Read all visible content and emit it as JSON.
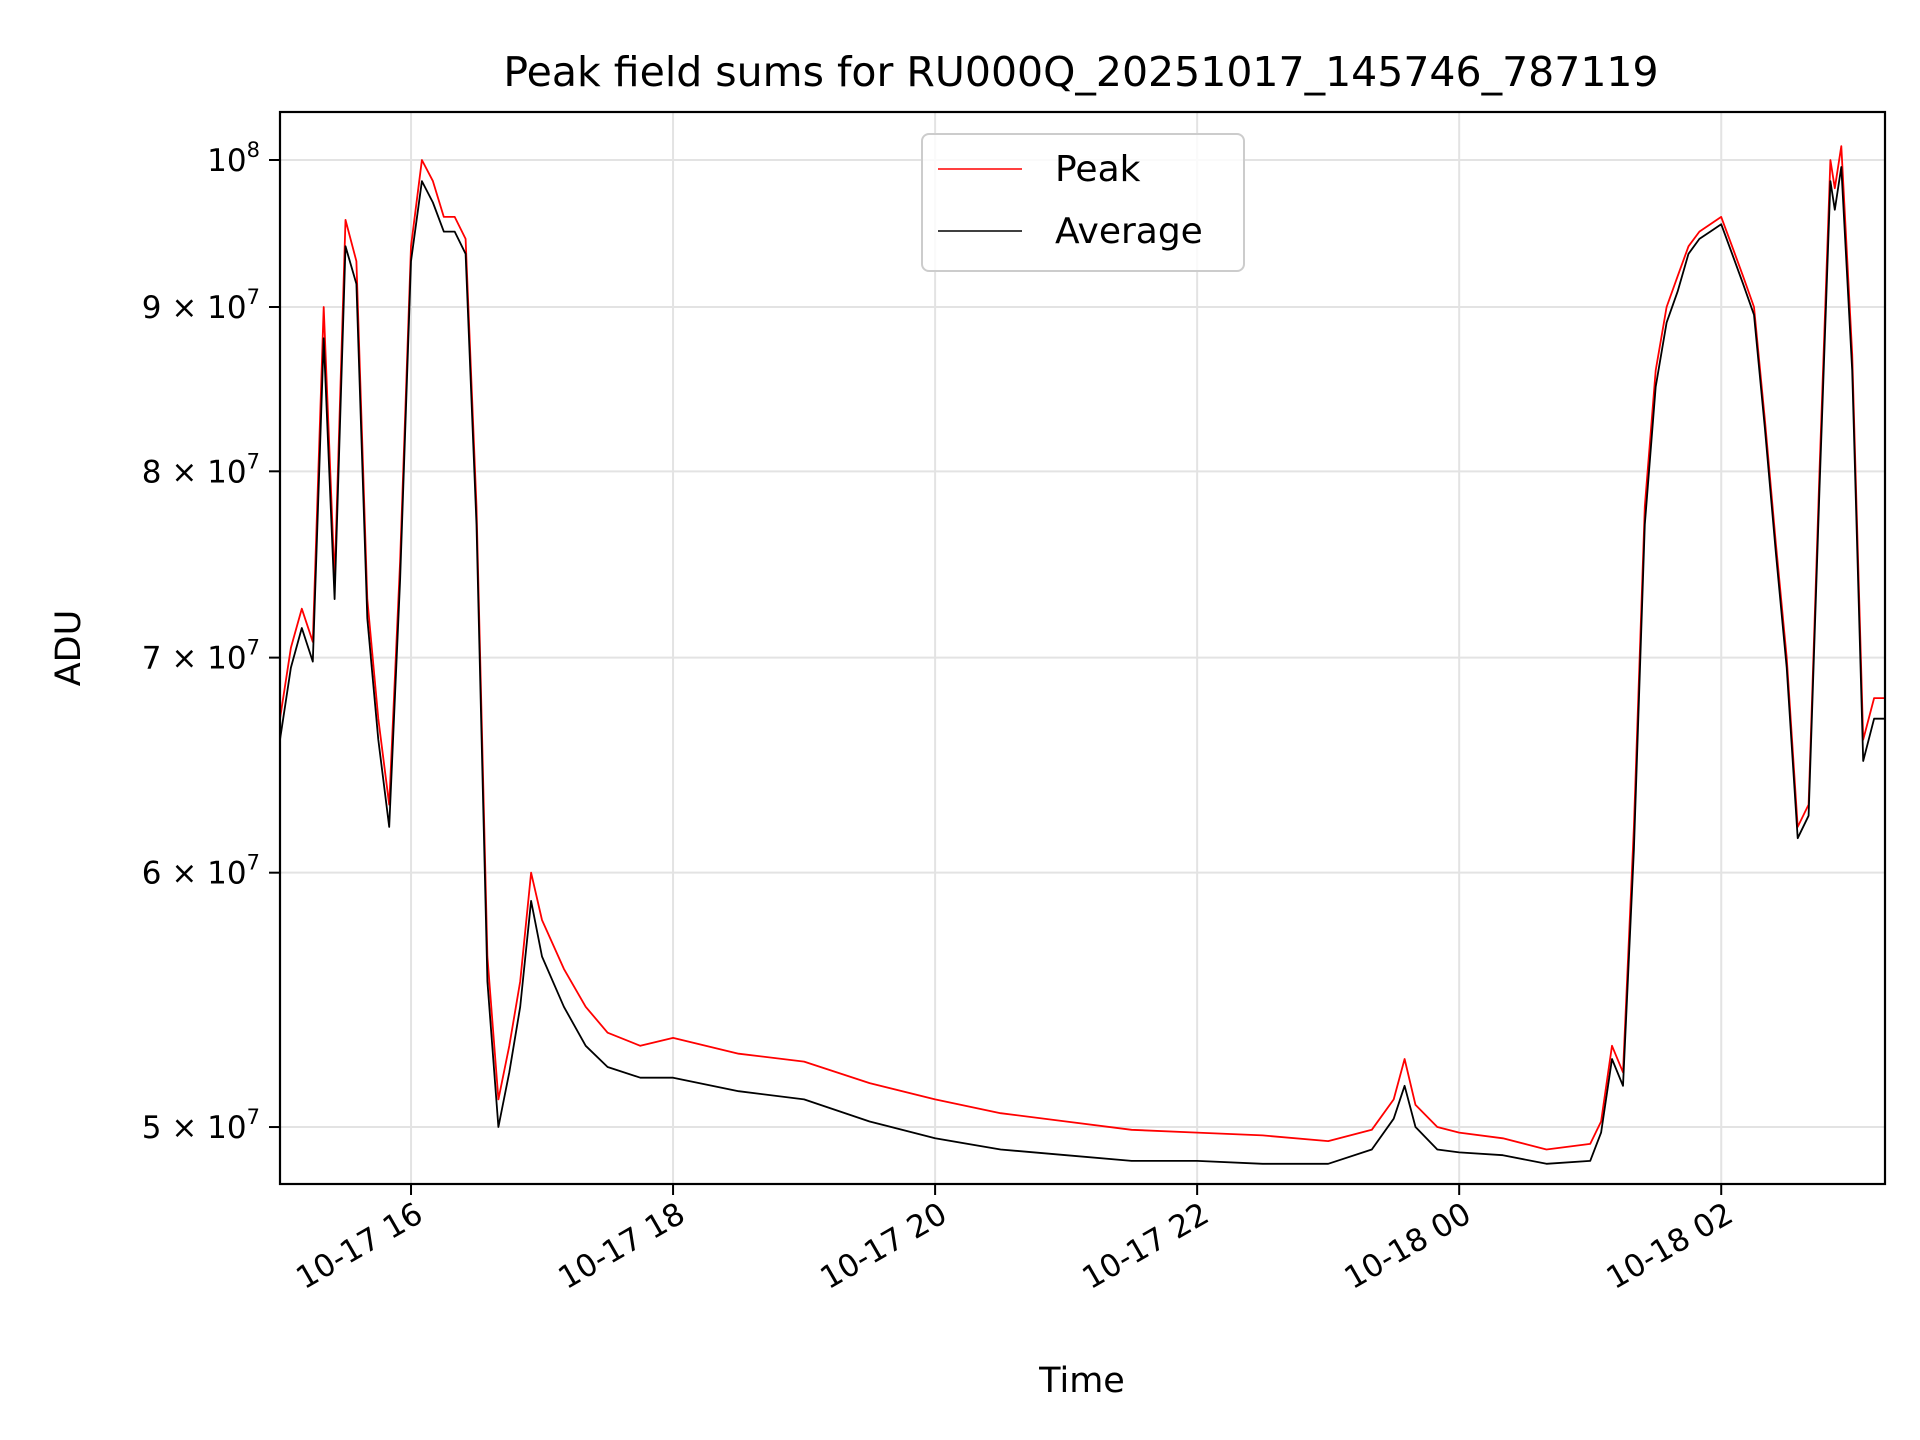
{
  "chart_data": {
    "type": "line",
    "title": "Peak field sums for RU000Q_20251017_145746_787119",
    "xlabel": "Time",
    "ylabel": "ADU",
    "yscale": "log",
    "grid": true,
    "legend_position": "top-center",
    "xlim": [
      "2025-10-17 15:00",
      "2025-10-18 03:15"
    ],
    "ylim": [
      48000000,
      103500000
    ],
    "x_ticks": [
      {
        "value": "2025-10-17 16:00",
        "label": "10-17 16"
      },
      {
        "value": "2025-10-17 18:00",
        "label": "10-17 18"
      },
      {
        "value": "2025-10-17 20:00",
        "label": "10-17 20"
      },
      {
        "value": "2025-10-17 22:00",
        "label": "10-17 22"
      },
      {
        "value": "2025-10-18 00:00",
        "label": "10-18 00"
      },
      {
        "value": "2025-10-18 02:00",
        "label": "10-18 02"
      }
    ],
    "y_ticks": [
      {
        "value": 50000000,
        "mantissa": "5 × 10",
        "exponent": "7"
      },
      {
        "value": 60000000,
        "mantissa": "6 × 10",
        "exponent": "7"
      },
      {
        "value": 70000000,
        "mantissa": "7 × 10",
        "exponent": "7"
      },
      {
        "value": 80000000,
        "mantissa": "8 × 10",
        "exponent": "7"
      },
      {
        "value": 90000000,
        "mantissa": "9 × 10",
        "exponent": "7"
      },
      {
        "value": 100000000,
        "mantissa": "10",
        "exponent": "8"
      }
    ],
    "x": [
      "2025-10-17 15:00",
      "2025-10-17 15:05",
      "2025-10-17 15:10",
      "2025-10-17 15:15",
      "2025-10-17 15:20",
      "2025-10-17 15:25",
      "2025-10-17 15:30",
      "2025-10-17 15:35",
      "2025-10-17 15:40",
      "2025-10-17 15:45",
      "2025-10-17 15:50",
      "2025-10-17 15:55",
      "2025-10-17 16:00",
      "2025-10-17 16:05",
      "2025-10-17 16:10",
      "2025-10-17 16:15",
      "2025-10-17 16:20",
      "2025-10-17 16:25",
      "2025-10-17 16:30",
      "2025-10-17 16:35",
      "2025-10-17 16:40",
      "2025-10-17 16:45",
      "2025-10-17 16:50",
      "2025-10-17 16:55",
      "2025-10-17 17:00",
      "2025-10-17 17:10",
      "2025-10-17 17:20",
      "2025-10-17 17:30",
      "2025-10-17 17:45",
      "2025-10-17 18:00",
      "2025-10-17 18:30",
      "2025-10-17 19:00",
      "2025-10-17 19:30",
      "2025-10-17 20:00",
      "2025-10-17 20:30",
      "2025-10-17 21:00",
      "2025-10-17 21:30",
      "2025-10-17 22:00",
      "2025-10-17 22:30",
      "2025-10-17 23:00",
      "2025-10-17 23:20",
      "2025-10-17 23:30",
      "2025-10-17 23:35",
      "2025-10-17 23:40",
      "2025-10-17 23:50",
      "2025-10-18 00:00",
      "2025-10-18 00:20",
      "2025-10-18 00:40",
      "2025-10-18 01:00",
      "2025-10-18 01:05",
      "2025-10-18 01:10",
      "2025-10-18 01:15",
      "2025-10-18 01:20",
      "2025-10-18 01:25",
      "2025-10-18 01:30",
      "2025-10-18 01:35",
      "2025-10-18 01:40",
      "2025-10-18 01:45",
      "2025-10-18 01:50",
      "2025-10-18 01:55",
      "2025-10-18 02:00",
      "2025-10-18 02:05",
      "2025-10-18 02:10",
      "2025-10-18 02:15",
      "2025-10-18 02:20",
      "2025-10-18 02:25",
      "2025-10-18 02:30",
      "2025-10-18 02:35",
      "2025-10-18 02:40",
      "2025-10-18 02:45",
      "2025-10-18 02:50",
      "2025-10-18 02:52",
      "2025-10-18 02:55",
      "2025-10-18 03:00",
      "2025-10-18 03:05",
      "2025-10-18 03:10",
      "2025-10-18 03:15"
    ],
    "series": [
      {
        "name": "Peak",
        "color": "#ff0000",
        "values": [
          67000000,
          70500000,
          72500000,
          70800000,
          90000000,
          74000000,
          95800000,
          93000000,
          73000000,
          67000000,
          63000000,
          75000000,
          94000000,
          100000000,
          98500000,
          96000000,
          96000000,
          94500000,
          78000000,
          56500000,
          51000000,
          53000000,
          55500000,
          60000000,
          58000000,
          56000000,
          54500000,
          53500000,
          53000000,
          53300000,
          52700000,
          52400000,
          51600000,
          51000000,
          50500000,
          50200000,
          49900000,
          49800000,
          49700000,
          49500000,
          49900000,
          51000000,
          52500000,
          50800000,
          50000000,
          49800000,
          49600000,
          49200000,
          49400000,
          50200000,
          53000000,
          52000000,
          62000000,
          78000000,
          86000000,
          90000000,
          92000000,
          94000000,
          95000000,
          95500000,
          96000000,
          94000000,
          92000000,
          90000000,
          83000000,
          76000000,
          70000000,
          62000000,
          63000000,
          80000000,
          100000000,
          98000000,
          101000000,
          87000000,
          66000000,
          68000000,
          68000000
        ]
      },
      {
        "name": "Average",
        "color": "#000000",
        "values": [
          66000000,
          69500000,
          71500000,
          69800000,
          88000000,
          73000000,
          94000000,
          91500000,
          72000000,
          66000000,
          62000000,
          74000000,
          93000000,
          98500000,
          97000000,
          95000000,
          95000000,
          93500000,
          77000000,
          55500000,
          50000000,
          52000000,
          54500000,
          58800000,
          56500000,
          54500000,
          53000000,
          52200000,
          51800000,
          51800000,
          51300000,
          51000000,
          50200000,
          49600000,
          49200000,
          49000000,
          48800000,
          48800000,
          48700000,
          48700000,
          49200000,
          50300000,
          51500000,
          50000000,
          49200000,
          49100000,
          49000000,
          48700000,
          48800000,
          49800000,
          52500000,
          51500000,
          61000000,
          77000000,
          85000000,
          89000000,
          91000000,
          93500000,
          94500000,
          95000000,
          95500000,
          93500000,
          91500000,
          89500000,
          82500000,
          75500000,
          69500000,
          61500000,
          62500000,
          79000000,
          98500000,
          96500000,
          99500000,
          86000000,
          65000000,
          67000000,
          67000000
        ]
      }
    ]
  }
}
